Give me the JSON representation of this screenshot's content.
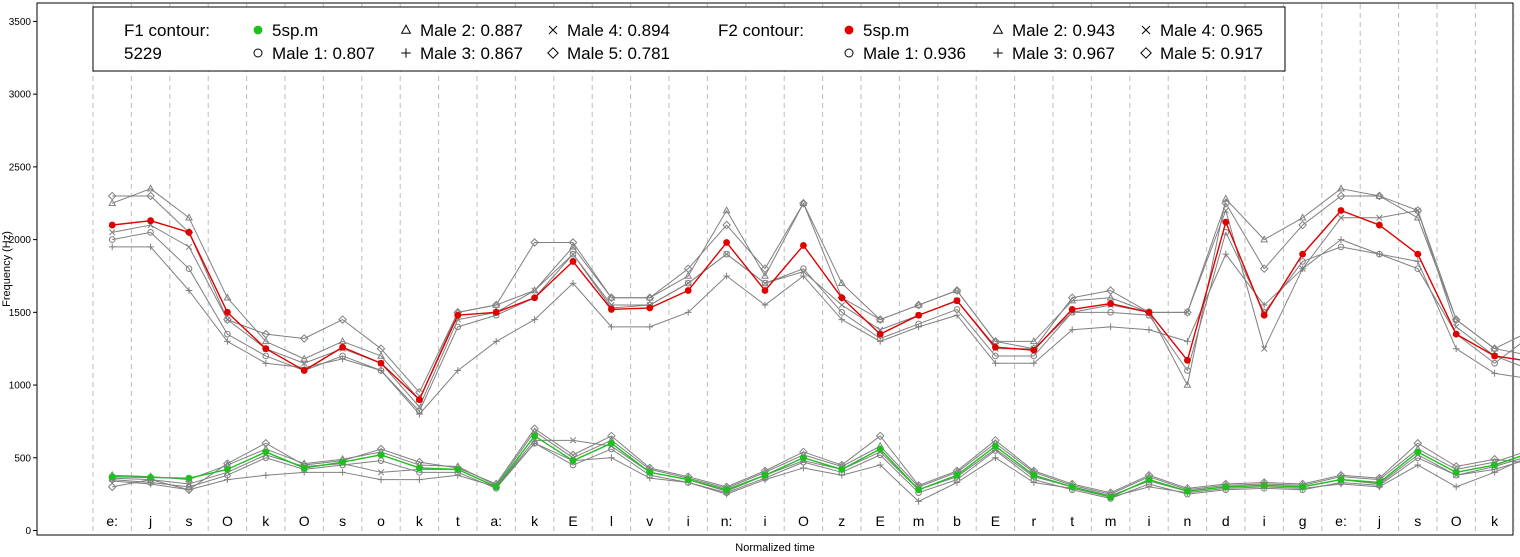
{
  "chart_data": {
    "type": "line",
    "xlabel": "Normalized time",
    "ylabel": "Frequency (Hz)",
    "ylim": [
      0,
      3600
    ],
    "yticks": [
      0,
      500,
      1000,
      1500,
      2000,
      2500,
      3000,
      3500
    ],
    "grid": "vertical dashed segment boundaries",
    "segments": [
      "e:",
      "j",
      "s",
      "O",
      "k",
      "O",
      "s",
      "o",
      "k",
      "t",
      "a:",
      "k",
      "E",
      "l",
      "v",
      "i",
      "n:",
      "i",
      "O",
      "z",
      "E",
      "m",
      "b",
      "E",
      "r",
      "t",
      "m",
      "i",
      "n",
      "d",
      "i",
      "g",
      "e:",
      "j",
      "s",
      "O",
      "k",
      "O"
    ],
    "x": [
      0.5,
      1.5,
      2.5,
      3.5,
      4.5,
      5.5,
      6.5,
      7.5,
      8.5,
      9.5,
      10.5,
      11.5,
      12.5,
      13.5,
      14.5,
      15.5,
      16.5,
      17.5,
      18.5,
      19.5,
      20.5,
      21.5,
      22.5,
      23.5,
      24.5,
      25.5,
      26.5,
      27.5,
      28.5,
      29.5,
      30.5,
      31.5,
      32.5,
      33.5,
      34.5,
      35.5,
      36.5,
      37.5
    ],
    "legend": {
      "f1_title": "F1 contour:",
      "f1_id": "5229",
      "f1_entries": [
        {
          "label": "5sp.m",
          "marker": "dot-green"
        },
        {
          "label": "Male 1: 0.807",
          "marker": "circle"
        },
        {
          "label": "Male 2: 0.887",
          "marker": "triangle"
        },
        {
          "label": "Male 3: 0.867",
          "marker": "plus"
        },
        {
          "label": "Male 4: 0.894",
          "marker": "cross"
        },
        {
          "label": "Male 5: 0.781",
          "marker": "diamond"
        }
      ],
      "f2_title": "F2 contour:",
      "f2_entries": [
        {
          "label": "5sp.m",
          "marker": "dot-red"
        },
        {
          "label": "Male 1: 0.936",
          "marker": "circle"
        },
        {
          "label": "Male 2: 0.943",
          "marker": "triangle"
        },
        {
          "label": "Male 3: 0.967",
          "marker": "plus"
        },
        {
          "label": "Male 4: 0.965",
          "marker": "cross"
        },
        {
          "label": "Male 5: 0.917",
          "marker": "diamond"
        }
      ]
    },
    "colors": {
      "f1_mean": "#1fbf1f",
      "f2_mean": "#e00000",
      "speakers": "#808080",
      "grid": "#bdbdbd"
    },
    "series": [
      {
        "name": "F2 5sp.m",
        "values": [
          2100,
          2130,
          2050,
          1500,
          1250,
          1100,
          1260,
          1150,
          900,
          1480,
          1500,
          1600,
          1850,
          1520,
          1530,
          1650,
          1980,
          1650,
          1960,
          1600,
          1350,
          1480,
          1580,
          1260,
          1240,
          1520,
          1560,
          1500,
          1170,
          2120,
          1480,
          1900,
          2200,
          2100,
          1900,
          1350,
          1200,
          1160
        ]
      },
      {
        "name": "F2 Male 1",
        "values": [
          2000,
          2050,
          1800,
          1350,
          1200,
          1100,
          1200,
          1100,
          820,
          1400,
          1480,
          1600,
          1900,
          1530,
          1550,
          1700,
          1900,
          1700,
          1800,
          1500,
          1320,
          1420,
          1520,
          1200,
          1200,
          1500,
          1500,
          1480,
          1100,
          2050,
          1500,
          1850,
          1950,
          1900,
          1800,
          1350,
          1150,
          1350
        ]
      },
      {
        "name": "F2 Male 2",
        "values": [
          2250,
          2350,
          2150,
          1600,
          1300,
          1180,
          1300,
          1200,
          900,
          1500,
          1550,
          1650,
          1950,
          1600,
          1600,
          1750,
          2200,
          1750,
          2250,
          1700,
          1450,
          1550,
          1650,
          1300,
          1300,
          1580,
          1600,
          1500,
          1000,
          2280,
          2000,
          2150,
          2350,
          2300,
          2150,
          1450,
          1250,
          1200
        ]
      },
      {
        "name": "F2 Male 3",
        "values": [
          1950,
          1950,
          1650,
          1300,
          1150,
          1120,
          1180,
          1100,
          800,
          1100,
          1300,
          1450,
          1700,
          1400,
          1400,
          1500,
          1750,
          1550,
          1750,
          1450,
          1300,
          1400,
          1480,
          1150,
          1150,
          1380,
          1400,
          1380,
          1300,
          1900,
          1550,
          1800,
          2000,
          1900,
          1850,
          1250,
          1080,
          1040
        ]
      },
      {
        "name": "F2 Male 4",
        "values": [
          2050,
          2100,
          1950,
          1450,
          1250,
          1150,
          1250,
          1150,
          850,
          1450,
          1500,
          1650,
          1900,
          1550,
          1550,
          1700,
          1900,
          1700,
          1780,
          1550,
          1380,
          1480,
          1580,
          1250,
          1250,
          1500,
          1550,
          1500,
          1500,
          2200,
          1250,
          1800,
          2150,
          2150,
          2200,
          1400,
          1200,
          1100
        ]
      },
      {
        "name": "F2 Male 5",
        "values": [
          2300,
          2300,
          2050,
          1450,
          1350,
          1320,
          1450,
          1250,
          950,
          1500,
          1550,
          1980,
          1980,
          1600,
          1600,
          1800,
          2100,
          1800,
          2250,
          1600,
          1450,
          1550,
          1650,
          1300,
          1250,
          1600,
          1650,
          1500,
          1500,
          2250,
          1800,
          2100,
          2300,
          2300,
          2200,
          1450,
          1250,
          1380
        ]
      },
      {
        "name": "F1 5sp.m",
        "values": [
          370,
          365,
          360,
          420,
          540,
          430,
          470,
          520,
          430,
          420,
          300,
          650,
          480,
          600,
          400,
          350,
          280,
          380,
          500,
          420,
          560,
          280,
          380,
          580,
          380,
          300,
          230,
          350,
          270,
          300,
          310,
          300,
          350,
          330,
          540,
          400,
          450,
          540
        ]
      },
      {
        "name": "F1 Male 1",
        "values": [
          350,
          330,
          300,
          380,
          500,
          420,
          450,
          480,
          400,
          400,
          290,
          600,
          450,
          560,
          380,
          330,
          260,
          360,
          470,
          400,
          520,
          260,
          350,
          550,
          350,
          280,
          220,
          320,
          250,
          280,
          290,
          280,
          330,
          310,
          500,
          380,
          420,
          500
        ]
      },
      {
        "name": "F1 Male 2",
        "values": [
          380,
          370,
          350,
          450,
          560,
          460,
          490,
          540,
          450,
          440,
          310,
          680,
          500,
          620,
          420,
          360,
          290,
          400,
          520,
          440,
          580,
          300,
          400,
          600,
          400,
          310,
          250,
          370,
          280,
          310,
          320,
          310,
          370,
          350,
          560,
          420,
          470,
          560
        ]
      },
      {
        "name": "F1 Male 3",
        "values": [
          340,
          320,
          280,
          350,
          380,
          400,
          400,
          350,
          350,
          380,
          300,
          600,
          480,
          500,
          360,
          330,
          250,
          350,
          430,
          380,
          450,
          200,
          330,
          500,
          330,
          290,
          230,
          300,
          260,
          290,
          300,
          290,
          320,
          300,
          450,
          300,
          400,
          520
        ]
      },
      {
        "name": "F1 Male 4",
        "values": [
          360,
          350,
          320,
          400,
          520,
          440,
          460,
          400,
          420,
          420,
          300,
          620,
          620,
          580,
          400,
          350,
          270,
          380,
          480,
          420,
          540,
          280,
          370,
          560,
          370,
          300,
          240,
          340,
          270,
          300,
          310,
          300,
          350,
          320,
          520,
          380,
          440,
          520
        ]
      },
      {
        "name": "F1 Male 5",
        "values": [
          300,
          350,
          280,
          460,
          600,
          450,
          480,
          560,
          470,
          430,
          320,
          700,
          520,
          650,
          430,
          370,
          300,
          410,
          540,
          450,
          650,
          310,
          410,
          620,
          410,
          320,
          260,
          380,
          290,
          320,
          330,
          320,
          380,
          360,
          600,
          440,
          490,
          460
        ]
      }
    ]
  }
}
